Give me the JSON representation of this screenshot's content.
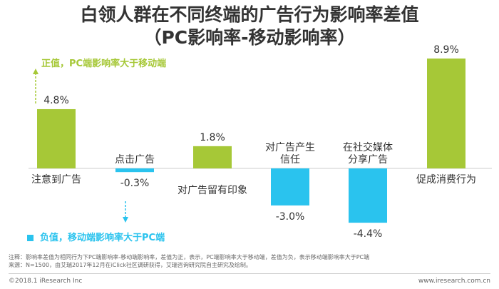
{
  "title": {
    "line1": "白领人群在不同终端的广告行为影响率差值",
    "line2": "（PC影响率-移动影响率）"
  },
  "legend": {
    "positive": "正值，PC端影响率大于移动端",
    "negative": "负值，移动端影响率大于PC端"
  },
  "colors": {
    "positive": "#a6c837",
    "negative": "#2ac3ee"
  },
  "chart_data": {
    "type": "bar",
    "categories": [
      "注意到广告",
      "点击广告",
      "对广告留有印象",
      "对广告产生信任",
      "在社交媒体分享广告",
      "促成消费行为"
    ],
    "category_lines": [
      [
        "注意到广告"
      ],
      [
        "点击广告"
      ],
      [
        "对广告留有印象"
      ],
      [
        "对广告产生",
        "信任"
      ],
      [
        "在社交媒体",
        "分享广告"
      ],
      [
        "促成消费行为"
      ]
    ],
    "values": [
      4.8,
      -0.3,
      1.8,
      -3.0,
      -4.4,
      8.9
    ],
    "value_labels": [
      "4.8%",
      "-0.3%",
      "1.8%",
      "-3.0%",
      "-4.4%",
      "8.9%"
    ],
    "ylim": [
      -4.4,
      8.9
    ],
    "grid": false
  },
  "footer": {
    "note_line1": "注释：影响率差值为相同行为下PC端影响率-移动端影响率，差值为正，表示，PC端影响率大于移动端，差值为负，表示移动端影响率大于PC端",
    "note_line2": "来源：N=1500，由艾瑞2017年12月在iClick社区调研获得，艾瑞咨询研究院自主研究及绘制。",
    "copyright": "©2018.1 iResearch Inc",
    "website": "www.iresearch.com.cn"
  }
}
